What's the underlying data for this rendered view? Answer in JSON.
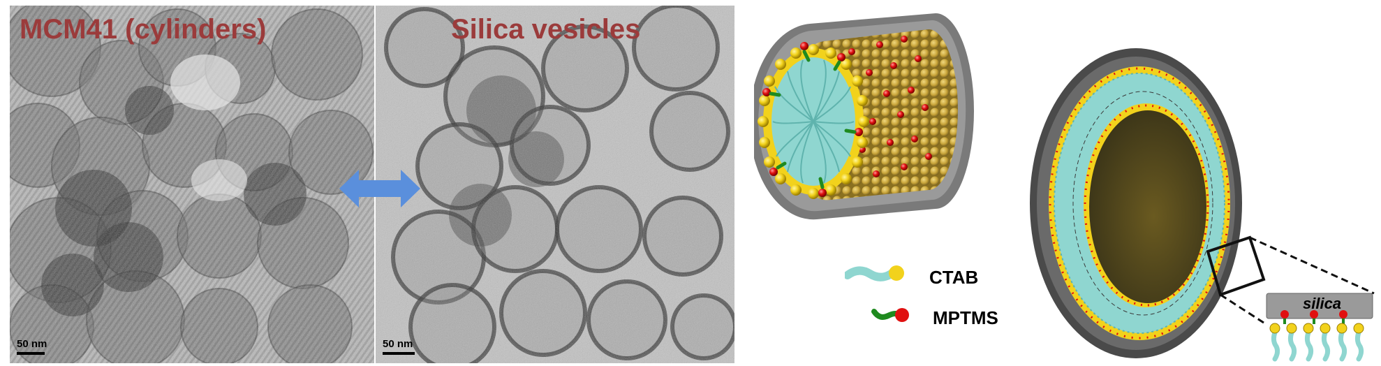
{
  "panels": {
    "mcm41": {
      "title": "MCM41 (cylinders)",
      "scale_label": "50 nm"
    },
    "vesicles": {
      "title": "Silica vesicles",
      "scale_label": "50 nm"
    }
  },
  "legend": {
    "ctab": "CTAB",
    "mptms": "MPTMS"
  },
  "inset": {
    "label": "silica"
  },
  "colors": {
    "title_red": "#9b3b3b",
    "arrow_blue": "#5a8fdc",
    "ctab_tail": "#8fd6d0",
    "head_yellow": "#f2d21c",
    "mptms_red": "#e01010",
    "mptms_green": "#1f8a1f",
    "silica_gray": "#8a8a8a"
  }
}
